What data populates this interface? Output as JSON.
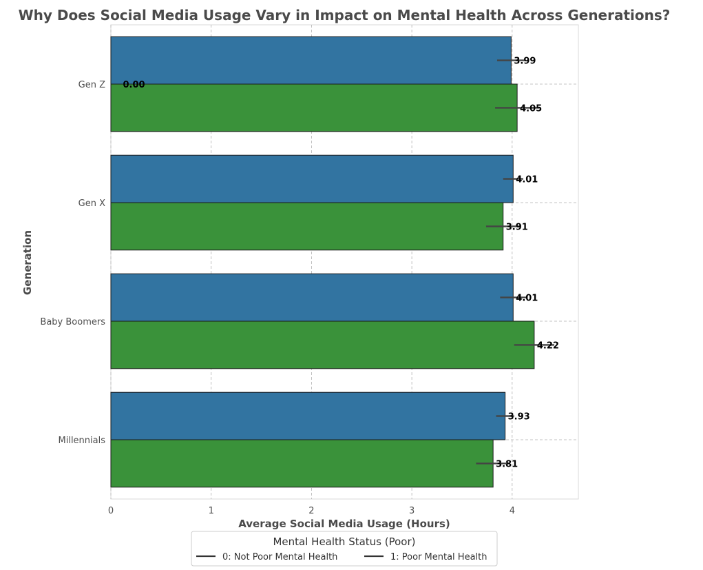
{
  "chart_data": {
    "type": "bar",
    "orientation": "horizontal",
    "title": "Why Does Social Media Usage Vary in Impact on Mental Health Across Generations?",
    "xlabel": "Average Social Media Usage (Hours)",
    "ylabel": "Generation",
    "categories": [
      "Gen Z",
      "Gen X",
      "Baby Boomers",
      "Millennials"
    ],
    "xlim": [
      0,
      4.66
    ],
    "xticks": [
      0,
      1,
      2,
      3,
      4
    ],
    "grid": true,
    "series": [
      {
        "name": "0: Not Poor Mental Health",
        "color": "#3274a1",
        "values": [
          3.99,
          4.01,
          4.01,
          3.93
        ],
        "labels": [
          "3.99",
          "4.01",
          "4.01",
          "3.93"
        ],
        "error": [
          0.14,
          0.1,
          0.13,
          0.09
        ]
      },
      {
        "name": "1: Poor Mental Health",
        "color": "#3a923a",
        "values": [
          4.05,
          3.91,
          4.22,
          3.81
        ],
        "labels": [
          "4.05",
          "3.91",
          "4.22",
          "3.81"
        ],
        "error": [
          0.22,
          0.17,
          0.2,
          0.17
        ]
      }
    ],
    "annotations": [
      {
        "text": "0.00",
        "category": "Gen Z",
        "x": 0.12
      }
    ],
    "legend": {
      "title": "Mental Health Status (Poor)",
      "placement": "bottom-center"
    }
  }
}
